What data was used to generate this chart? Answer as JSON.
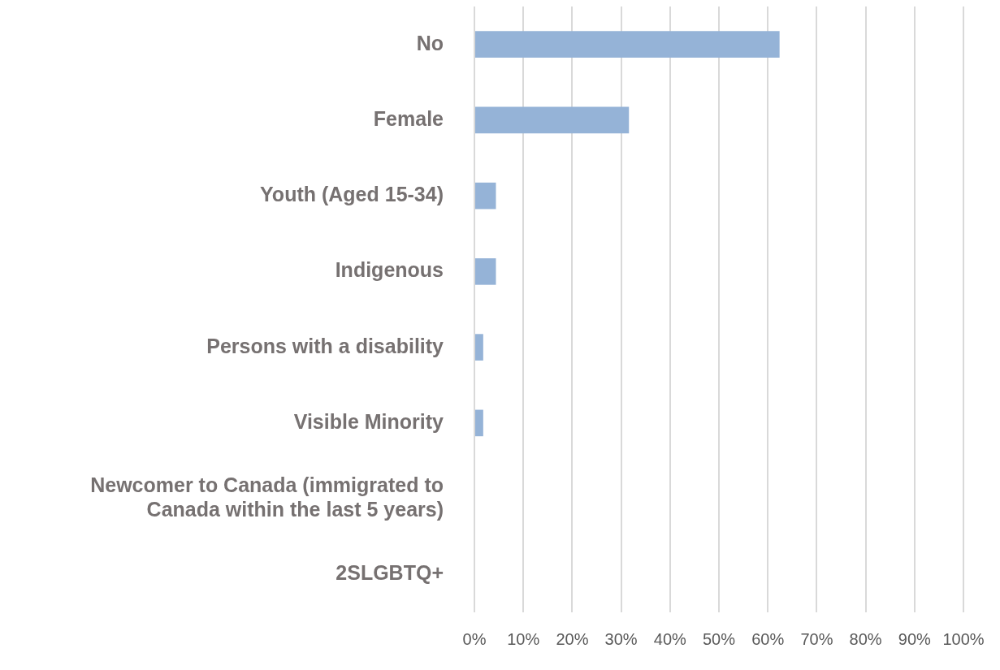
{
  "chart_data": {
    "type": "bar",
    "orientation": "horizontal",
    "categories": [
      "No",
      "Female",
      "Youth (Aged 15-34)",
      "Indigenous",
      "Persons with a disability",
      "Visible Minority",
      "Newcomer to Canada (immigrated to Canada within the last 5 years)",
      "2SLGBTQ+"
    ],
    "values": [
      62.4,
      31.6,
      4.4,
      4.4,
      1.8,
      1.8,
      0,
      0
    ],
    "color": "#95b3d7",
    "xlim": [
      0,
      100
    ],
    "xticks": [
      {
        "value": 0,
        "label": "0%"
      },
      {
        "value": 10,
        "label": "10%"
      },
      {
        "value": 20,
        "label": "20%"
      },
      {
        "value": 30,
        "label": "30%"
      },
      {
        "value": 40,
        "label": "40%"
      },
      {
        "value": 50,
        "label": "50%"
      },
      {
        "value": 60,
        "label": "60%"
      },
      {
        "value": 70,
        "label": "70%"
      },
      {
        "value": 80,
        "label": "80%"
      },
      {
        "value": 90,
        "label": "90%"
      },
      {
        "value": 100,
        "label": "100%"
      }
    ],
    "grid": "x"
  }
}
